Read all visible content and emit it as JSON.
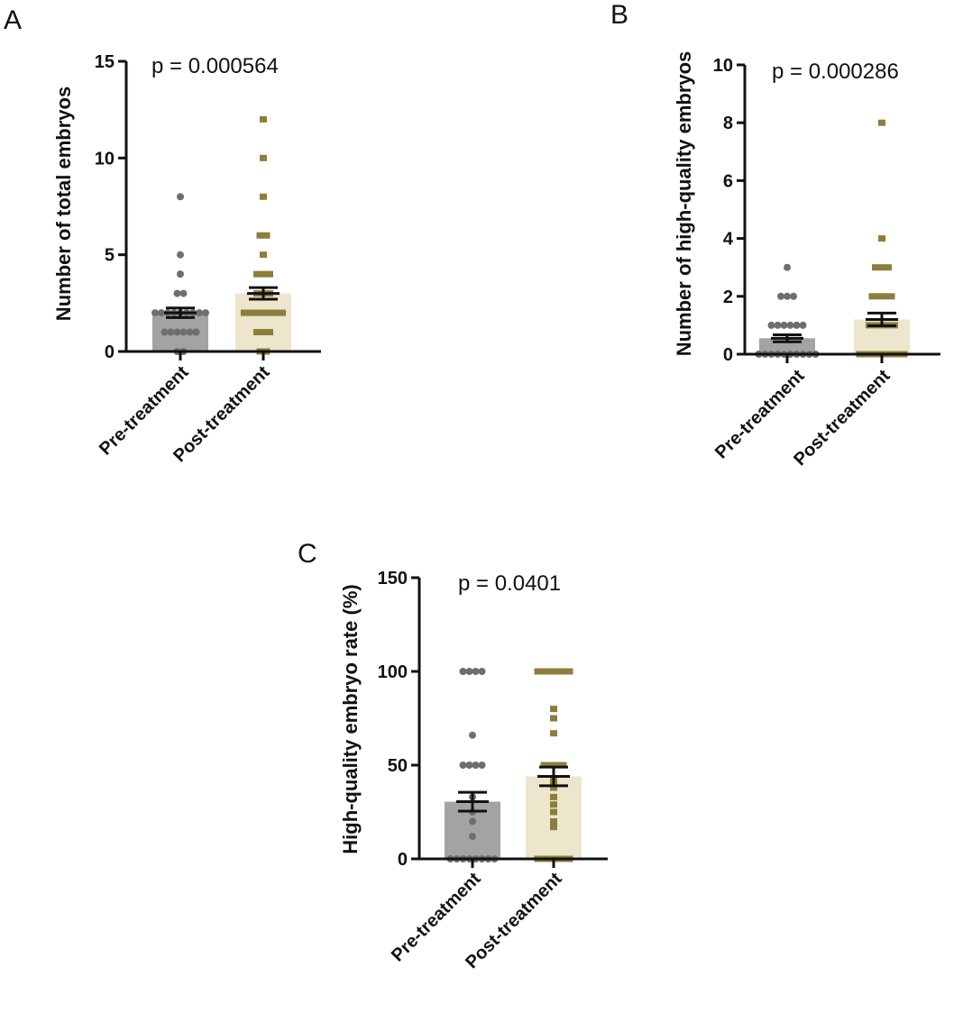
{
  "chart_data": [
    {
      "panel": "A",
      "type": "bar",
      "p_value_text": "p = 0.000564",
      "ylabel": "Number of total embryos",
      "ylim": [
        0,
        15
      ],
      "yticks": [
        "0",
        "5",
        "10",
        "15"
      ],
      "categories": [
        "Pre-treatment",
        "Post-treatment"
      ],
      "means": [
        2.0,
        3.0
      ],
      "errors": [
        0.25,
        0.3
      ],
      "bar_colors": [
        "#a3a3a3",
        "#ede5cc"
      ],
      "point_colors": [
        "#6e6e6e",
        "#8c7e3c"
      ],
      "points": [
        [
          0,
          0,
          1,
          1,
          1,
          1,
          1,
          1,
          2,
          2,
          2,
          2,
          2,
          2,
          2,
          2,
          2,
          3,
          3,
          4,
          5,
          8
        ],
        [
          0,
          0,
          1,
          1,
          1,
          2,
          2,
          2,
          2,
          2,
          2,
          2,
          3,
          3,
          3,
          4,
          4,
          4,
          5,
          6,
          6,
          8,
          10,
          12
        ]
      ]
    },
    {
      "panel": "B",
      "type": "bar",
      "p_value_text": "p = 0.000286",
      "ylabel": "Number of high-quality embryos",
      "ylim": [
        0,
        10
      ],
      "yticks": [
        "0",
        "2",
        "4",
        "6",
        "8",
        "10"
      ],
      "categories": [
        "Pre-treatment",
        "Post-treatment"
      ],
      "means": [
        0.55,
        1.2
      ],
      "errors": [
        0.12,
        0.22
      ],
      "bar_colors": [
        "#a3a3a3",
        "#ede5cc"
      ],
      "point_colors": [
        "#6e6e6e",
        "#8c7e3c"
      ],
      "points": [
        [
          0,
          0,
          0,
          0,
          0,
          0,
          0,
          0,
          0,
          0,
          1,
          1,
          1,
          1,
          1,
          1,
          2,
          2,
          2,
          3
        ],
        [
          0,
          0,
          0,
          0,
          0,
          0,
          0,
          0,
          1,
          1,
          1,
          1,
          1,
          2,
          2,
          2,
          2,
          3,
          3,
          3,
          4,
          8
        ]
      ]
    },
    {
      "panel": "C",
      "type": "bar",
      "p_value_text": "p = 0.0401",
      "ylabel": "High-quality embryo rate (%)",
      "ylim": [
        0,
        150
      ],
      "yticks": [
        "0",
        "50",
        "100",
        "150"
      ],
      "categories": [
        "Pre-treatment",
        "Post-treatment"
      ],
      "means": [
        30.5,
        44
      ],
      "errors": [
        5,
        5
      ],
      "bar_colors": [
        "#a3a3a3",
        "#ede5cc"
      ],
      "point_colors": [
        "#6e6e6e",
        "#8c7e3c"
      ],
      "points": [
        [
          0,
          0,
          0,
          0,
          0,
          0,
          0,
          0,
          12,
          20,
          25,
          33,
          50,
          50,
          50,
          50,
          66,
          100,
          100,
          100,
          100
        ],
        [
          0,
          0,
          0,
          0,
          0,
          0,
          17,
          20,
          25,
          29,
          33,
          38,
          40,
          43,
          50,
          50,
          50,
          50,
          67,
          75,
          80,
          100,
          100,
          100,
          100,
          100,
          100
        ]
      ]
    }
  ]
}
